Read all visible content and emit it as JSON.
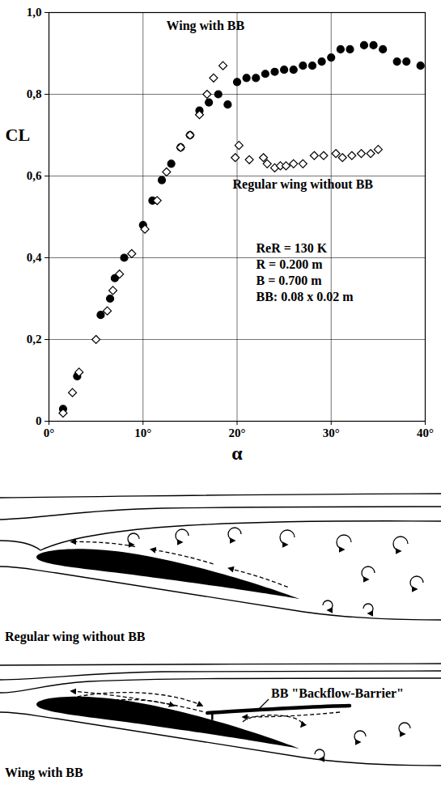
{
  "chart_data": {
    "type": "scatter",
    "x_label": "α",
    "y_label": "CL",
    "xlim": [
      0,
      40
    ],
    "ylim": [
      0,
      1
    ],
    "xticks": [
      {
        "value": 0,
        "label": "0°"
      },
      {
        "value": 10,
        "label": "10°"
      },
      {
        "value": 20,
        "label": "20°"
      },
      {
        "value": 30,
        "label": "30°"
      },
      {
        "value": 40,
        "label": "40°"
      }
    ],
    "yticks": [
      0,
      {
        "value": 0.2,
        "label": "0,2"
      },
      {
        "value": 0.4,
        "label": "0,4"
      },
      {
        "value": 0.6,
        "label": "0,6"
      },
      {
        "value": 0.8,
        "label": "0,8"
      },
      {
        "value": 1,
        "label": "1,0"
      }
    ],
    "grid": true,
    "series": [
      {
        "name": "Wing with BB",
        "color": "#000000",
        "marker": "filled-circle",
        "x": [
          1.5,
          3.0,
          5.5,
          6.5,
          7.0,
          8.0,
          10.0,
          11.0,
          12.0,
          13.0,
          14.0,
          15.0,
          16.0,
          17.0,
          18.0,
          19.0,
          20.0,
          21.0,
          22.0,
          23.0,
          24.0,
          25.0,
          26.0,
          27.0,
          28.0,
          29.0,
          30.0,
          31.0,
          32.0,
          33.5,
          34.5,
          35.5,
          37.0,
          38.0,
          39.5
        ],
        "values": [
          0.03,
          0.11,
          0.26,
          0.3,
          0.35,
          0.4,
          0.48,
          0.54,
          0.59,
          0.63,
          0.67,
          0.7,
          0.76,
          0.78,
          0.8,
          0.775,
          0.83,
          0.84,
          0.84,
          0.85,
          0.855,
          0.86,
          0.86,
          0.87,
          0.87,
          0.88,
          0.89,
          0.91,
          0.91,
          0.92,
          0.92,
          0.91,
          0.88,
          0.88,
          0.87
        ]
      },
      {
        "name": "Regular wing without BB",
        "color": "#000000",
        "marker": "open-diamond",
        "x": [
          1.5,
          2.5,
          3.2,
          5.0,
          6.2,
          6.8,
          7.5,
          8.8,
          10.2,
          11.5,
          12.5,
          14.0,
          15.0,
          16.0,
          16.8,
          17.5,
          18.5,
          19.8,
          20.2,
          21.3,
          22.8,
          23.2,
          24.0,
          24.6,
          25.2,
          26.0,
          27.0,
          28.2,
          29.2,
          30.5,
          31.2,
          32.2,
          33.2,
          34.2,
          35.0
        ],
        "values": [
          0.02,
          0.07,
          0.12,
          0.2,
          0.27,
          0.32,
          0.36,
          0.41,
          0.47,
          0.54,
          0.61,
          0.67,
          0.7,
          0.75,
          0.8,
          0.84,
          0.87,
          0.645,
          0.675,
          0.64,
          0.645,
          0.63,
          0.62,
          0.625,
          0.625,
          0.63,
          0.63,
          0.65,
          0.65,
          0.655,
          0.645,
          0.65,
          0.655,
          0.655,
          0.665
        ]
      }
    ],
    "annotations": [
      "ReR = 130 K",
      "R = 0.200 m",
      "B = 0.700 m",
      "BB: 0.08 x 0.02 m"
    ]
  },
  "diagrams": [
    {
      "label": "Regular wing without BB"
    },
    {
      "label": "Wing with BB",
      "callout": "BB \"Backflow-Barrier\""
    }
  ]
}
